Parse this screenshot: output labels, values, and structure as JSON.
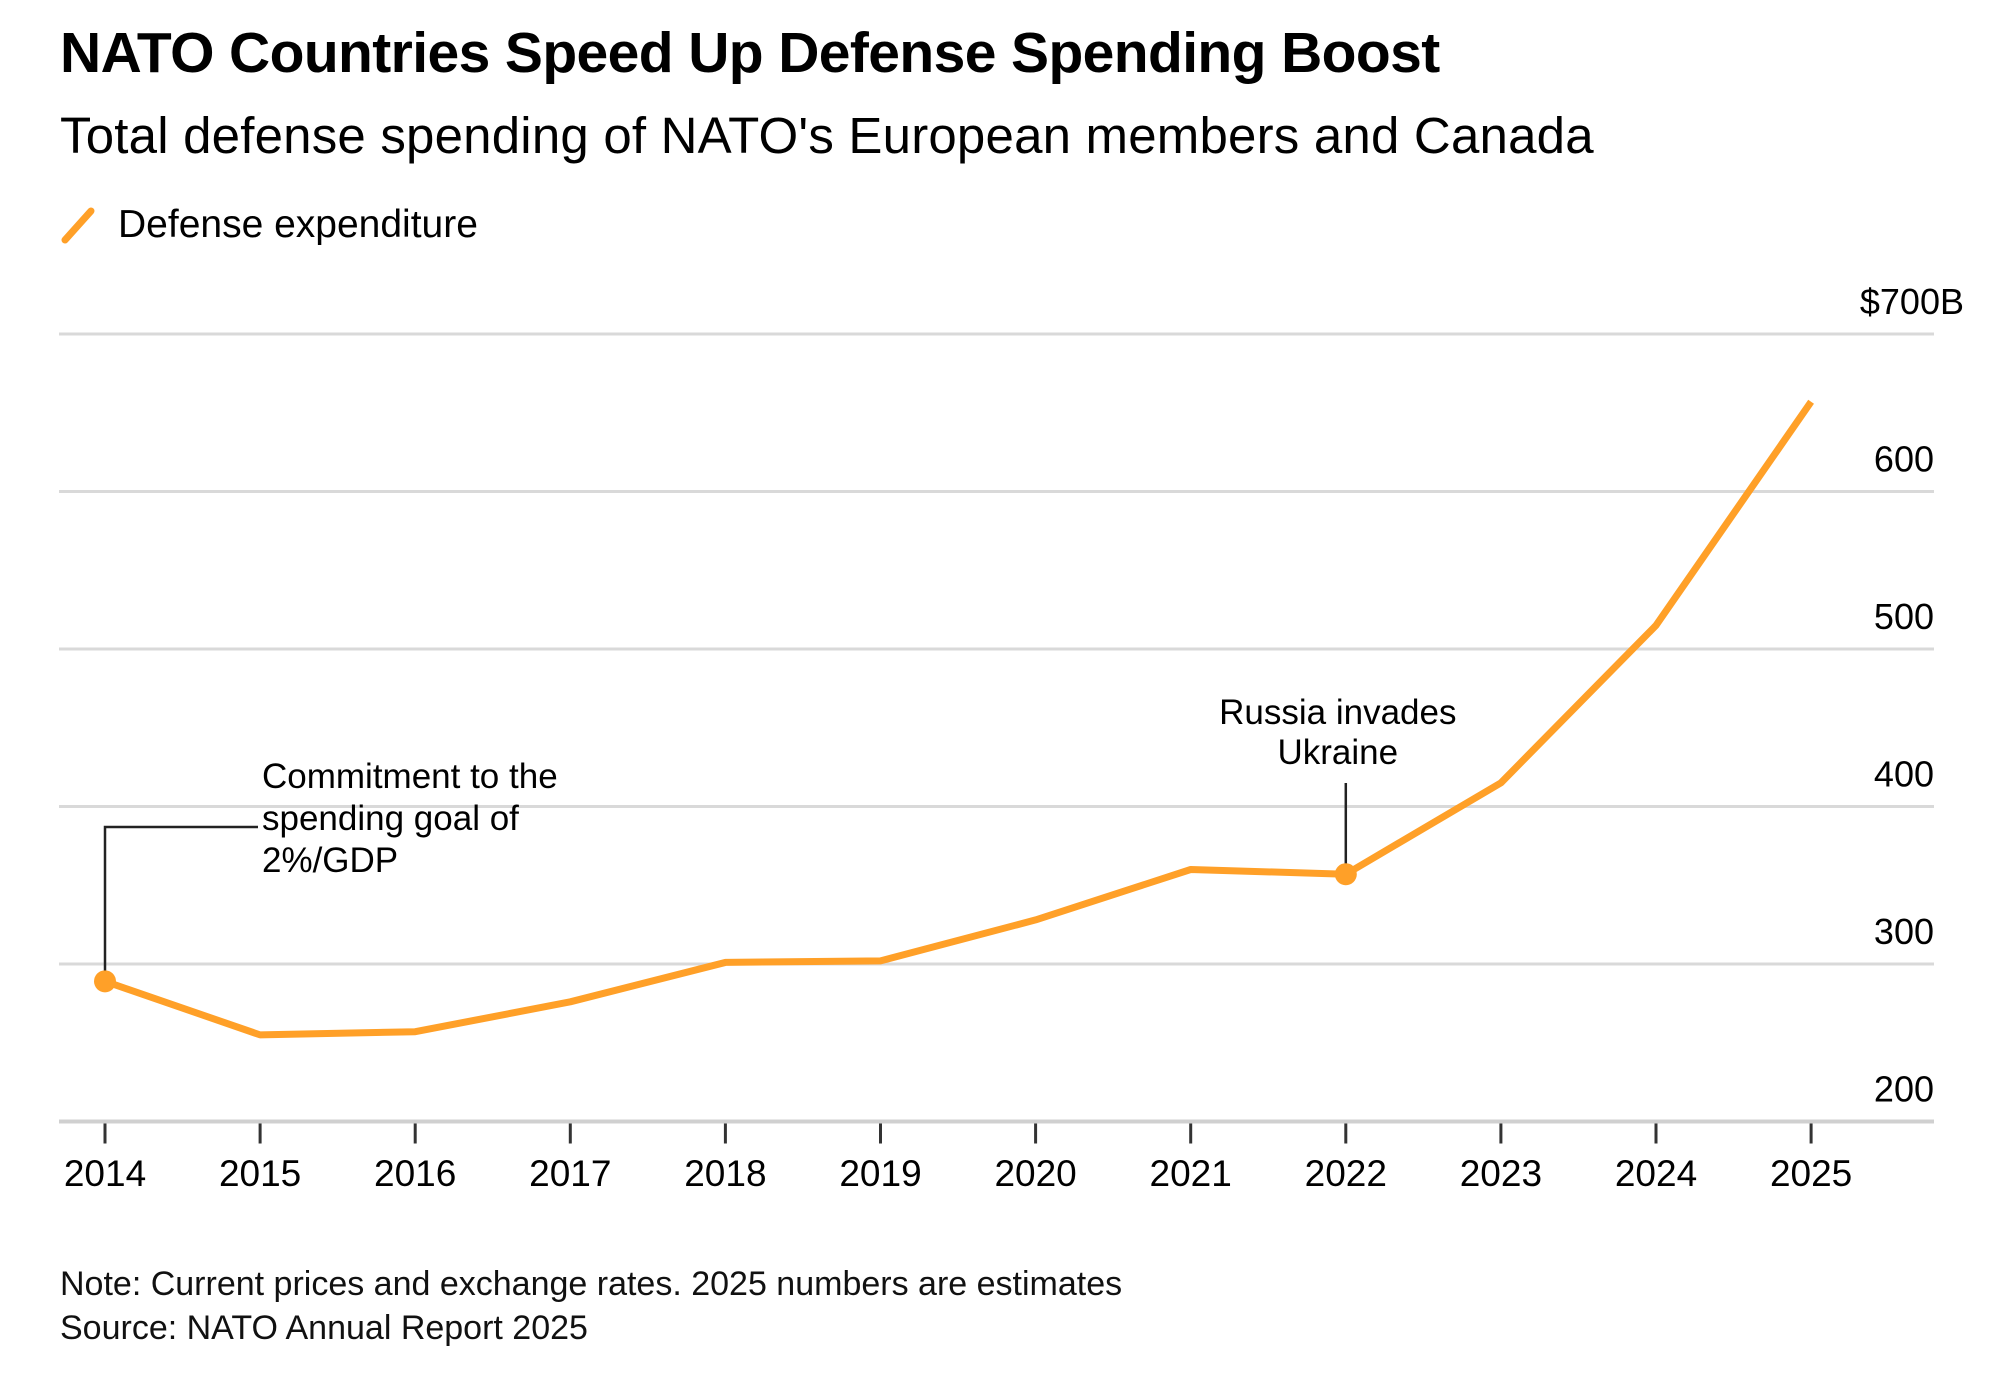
{
  "chart_data": {
    "type": "line",
    "title": "NATO Countries Speed Up Defense Spending Boost",
    "subtitle": "Total defense spending of NATO's European members and Canada",
    "xlabel": "",
    "ylabel": "",
    "legend": {
      "position": "top-left",
      "entries": [
        {
          "label": "Defense expenditure",
          "color": "#FFA028"
        }
      ]
    },
    "x": [
      2014,
      2015,
      2016,
      2017,
      2018,
      2019,
      2020,
      2021,
      2022,
      2023,
      2024,
      2025
    ],
    "x_tick_labels": [
      "2014",
      "2015",
      "2016",
      "2017",
      "2018",
      "2019",
      "2020",
      "2021",
      "2022",
      "2023",
      "2024",
      "2025"
    ],
    "series": [
      {
        "name": "Defense expenditure",
        "color": "#FFA028",
        "values": [
          289,
          255,
          257,
          276,
          301,
          302,
          328,
          360,
          357,
          415,
          515,
          657
        ]
      }
    ],
    "ylim": [
      200,
      700
    ],
    "y_ticks": [
      200,
      300,
      400,
      500,
      600,
      700
    ],
    "y_tick_labels": [
      "200",
      "300",
      "400",
      "500",
      "600",
      "$700B"
    ],
    "y_axis_side": "right",
    "grid": true,
    "unit": "billion USD",
    "annotations": [
      {
        "year": 2014,
        "value": 289,
        "lines": [
          "Commitment to the",
          "spending goal of",
          "2%/GDP"
        ]
      },
      {
        "year": 2022,
        "value": 357,
        "lines": [
          "Russia invades",
          "Ukraine"
        ]
      }
    ],
    "note": "Note: Current prices and exchange rates. 2025 numbers are estimates",
    "source": "Source: NATO Annual Report 2025"
  },
  "colors": {
    "line": "#FFA028",
    "grid": "#d9d9d9",
    "axis": "#d0d0d0",
    "tick": "#333333",
    "annotation_line": "#222222"
  }
}
